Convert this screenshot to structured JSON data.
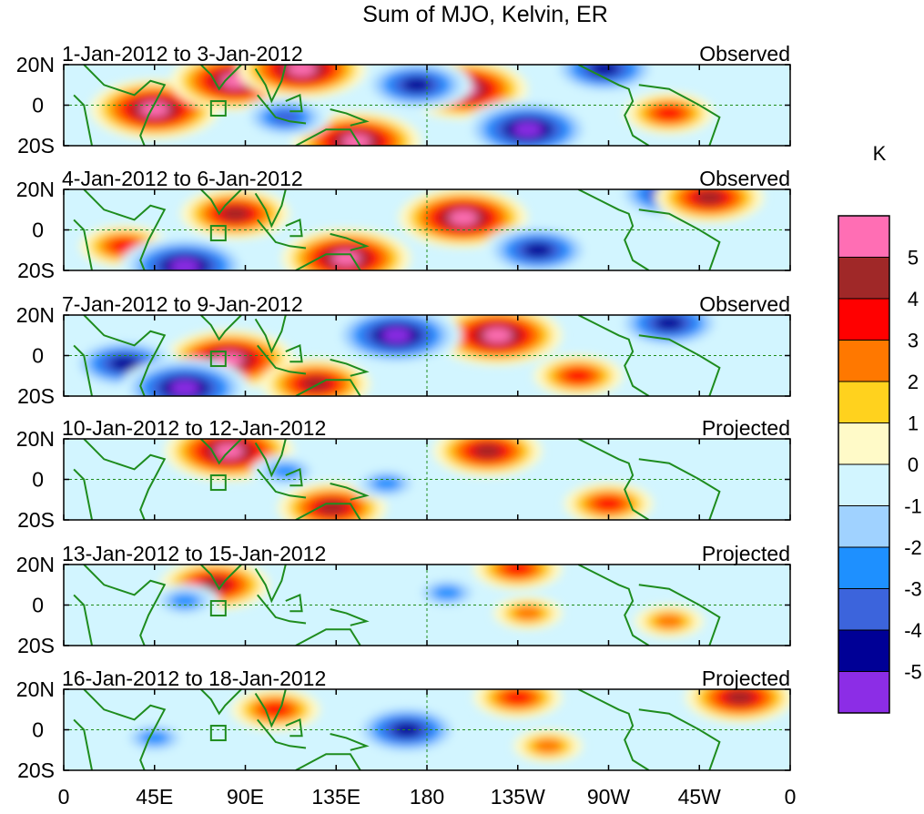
{
  "chart_data": {
    "type": "heatmap",
    "title": "Sum of MJO, Kelvin, ER",
    "colorbar": {
      "unit_label": "K",
      "levels": [
        "5",
        "4",
        "3",
        "2",
        "1",
        "0",
        "-1",
        "-2",
        "-3",
        "-4",
        "-5"
      ],
      "colors": [
        "#ff6eb4",
        "#a02828",
        "#ff0000",
        "#ff7800",
        "#ffd21e",
        "#fffac8",
        "#d2f5ff",
        "#a0d2ff",
        "#1e90ff",
        "#3c64dc",
        "#000096",
        "#8c2de6"
      ]
    },
    "x_axis": {
      "range_deg_east": [
        0,
        360
      ],
      "tick_labels": [
        "0",
        "45E",
        "90E",
        "135E",
        "180",
        "135W",
        "90W",
        "45W",
        "0"
      ]
    },
    "y_axis": {
      "range_deg": [
        -20,
        20
      ],
      "tick_labels": [
        "20N",
        "0",
        "20S"
      ]
    },
    "panels": [
      {
        "date_range": "1-Jan-2012 to 3-Jan-2012",
        "status": "Observed",
        "anomalies": [
          {
            "lon": 45,
            "lat": -2,
            "value": 5
          },
          {
            "lon": 85,
            "lat": 12,
            "value": 5
          },
          {
            "lon": 118,
            "lat": 18,
            "value": 5
          },
          {
            "lon": 198,
            "lat": 8,
            "value": 5
          },
          {
            "lon": 145,
            "lat": -18,
            "value": 5
          },
          {
            "lon": 110,
            "lat": -6,
            "value": -3
          },
          {
            "lon": 175,
            "lat": 10,
            "value": -4
          },
          {
            "lon": 230,
            "lat": -12,
            "value": -5
          },
          {
            "lon": 268,
            "lat": 18,
            "value": -4
          },
          {
            "lon": 300,
            "lat": -4,
            "value": 3
          }
        ]
      },
      {
        "date_range": "4-Jan-2012 to 6-Jan-2012",
        "status": "Observed",
        "anomalies": [
          {
            "lon": 85,
            "lat": 8,
            "value": 4
          },
          {
            "lon": 198,
            "lat": 6,
            "value": 5
          },
          {
            "lon": 140,
            "lat": -14,
            "value": 5
          },
          {
            "lon": 30,
            "lat": -8,
            "value": 3
          },
          {
            "lon": 60,
            "lat": -18,
            "value": -5
          },
          {
            "lon": 235,
            "lat": -10,
            "value": -4
          },
          {
            "lon": 300,
            "lat": 18,
            "value": -4
          },
          {
            "lon": 320,
            "lat": 16,
            "value": 4
          }
        ]
      },
      {
        "date_range": "7-Jan-2012 to 9-Jan-2012",
        "status": "Observed",
        "anomalies": [
          {
            "lon": 215,
            "lat": 10,
            "value": 5
          },
          {
            "lon": 82,
            "lat": -2,
            "value": 5
          },
          {
            "lon": 125,
            "lat": -14,
            "value": 4
          },
          {
            "lon": 30,
            "lat": -4,
            "value": -4
          },
          {
            "lon": 60,
            "lat": -16,
            "value": -5
          },
          {
            "lon": 165,
            "lat": 10,
            "value": -5
          },
          {
            "lon": 255,
            "lat": -10,
            "value": 3
          },
          {
            "lon": 300,
            "lat": 16,
            "value": -4
          }
        ]
      },
      {
        "date_range": "10-Jan-2012 to 12-Jan-2012",
        "status": "Projected",
        "anomalies": [
          {
            "lon": 82,
            "lat": 14,
            "value": 5
          },
          {
            "lon": 210,
            "lat": 14,
            "value": 4
          },
          {
            "lon": 133,
            "lat": -14,
            "value": 4
          },
          {
            "lon": 270,
            "lat": -12,
            "value": 3
          },
          {
            "lon": 110,
            "lat": 4,
            "value": -2
          },
          {
            "lon": 160,
            "lat": -2,
            "value": -2
          }
        ]
      },
      {
        "date_range": "13-Jan-2012 to 15-Jan-2012",
        "status": "Projected",
        "anomalies": [
          {
            "lon": 75,
            "lat": 10,
            "value": 4
          },
          {
            "lon": 225,
            "lat": 18,
            "value": 3
          },
          {
            "lon": 230,
            "lat": -4,
            "value": 2
          },
          {
            "lon": 300,
            "lat": -8,
            "value": 2
          },
          {
            "lon": 60,
            "lat": 2,
            "value": -2
          },
          {
            "lon": 190,
            "lat": 6,
            "value": -2
          }
        ]
      },
      {
        "date_range": "16-Jan-2012 to 18-Jan-2012",
        "status": "Projected",
        "anomalies": [
          {
            "lon": 105,
            "lat": 10,
            "value": 3
          },
          {
            "lon": 225,
            "lat": 16,
            "value": 3
          },
          {
            "lon": 240,
            "lat": -8,
            "value": 2
          },
          {
            "lon": 335,
            "lat": 16,
            "value": 4
          },
          {
            "lon": 170,
            "lat": 0,
            "value": -4
          },
          {
            "lon": 45,
            "lat": -4,
            "value": -2
          }
        ]
      }
    ]
  }
}
